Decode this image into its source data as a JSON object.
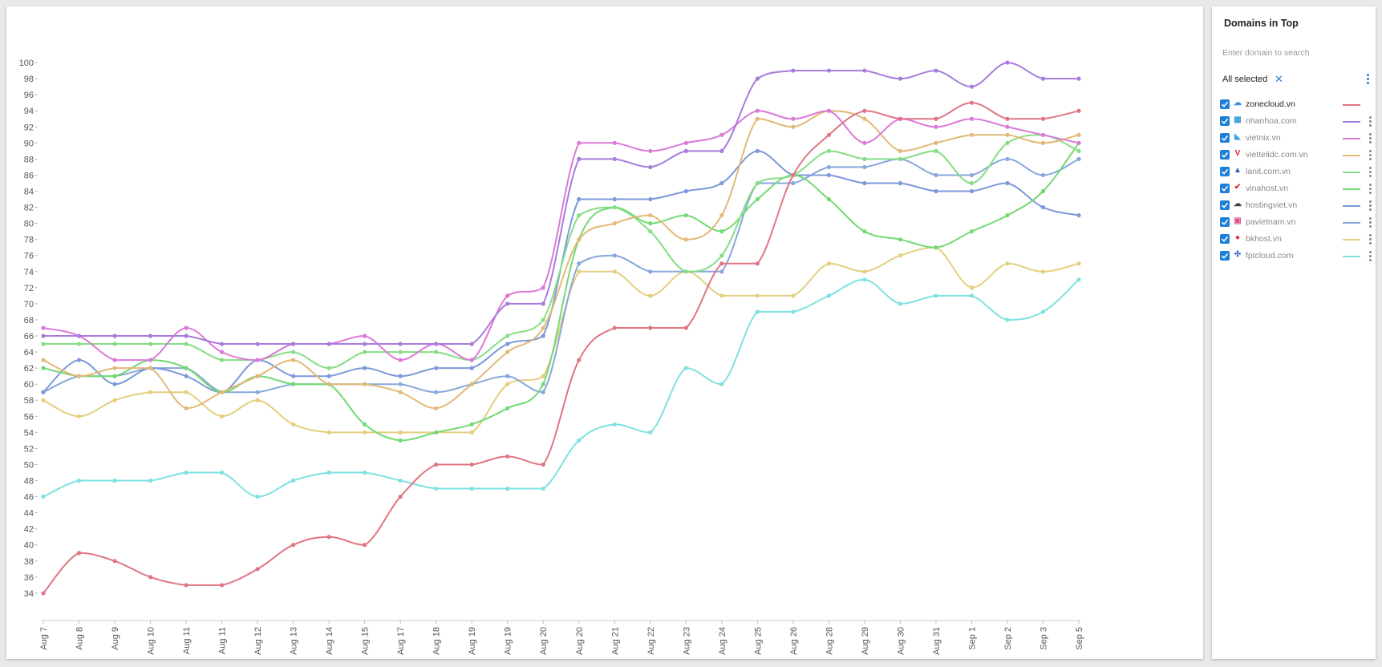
{
  "panel": {
    "title": "Domains in Top",
    "search_placeholder": "Enter domain to search",
    "selection_label": "All selected",
    "clear_icon": "close-icon",
    "menu_icon": "vertical-dots-icon"
  },
  "domains": [
    {
      "name": "zonecloud.vn",
      "icon": "cloud-icon",
      "color": "#e07583"
    },
    {
      "name": "nhanhoa.com",
      "icon": "nhanhoa-logo-icon",
      "color": "#a77cdb"
    },
    {
      "name": "vietnix.vn",
      "icon": "vietnix-logo-icon",
      "color": "#db79d8"
    },
    {
      "name": "viettelidc.com.vn",
      "icon": "viettel-logo-icon",
      "color": "#e2b977"
    },
    {
      "name": "lanit.com.vn",
      "icon": "lanit-logo-icon",
      "color": "#86dd86"
    },
    {
      "name": "vinahost.vn",
      "icon": "vinahost-logo-icon",
      "color": "#73d973"
    },
    {
      "name": "hostingviet.vn",
      "icon": "hostingviet-logo-icon",
      "color": "#7d98d9"
    },
    {
      "name": "pavietnam.vn",
      "icon": "pavietnam-logo-icon",
      "color": "#88a7dc"
    },
    {
      "name": "bkhost.vn",
      "icon": "bkhost-logo-icon",
      "color": "#e3cf7f"
    },
    {
      "name": "fptcloud.com",
      "icon": "fptcloud-logo-icon",
      "color": "#7ee1e1"
    }
  ],
  "chart_data": {
    "type": "line",
    "x": [
      "Aug 7",
      "Aug 8",
      "Aug 9",
      "Aug 10",
      "Aug 11",
      "Aug 11",
      "Aug 12",
      "Aug 13",
      "Aug 14",
      "Aug 15",
      "Aug 17",
      "Aug 18",
      "Aug 19",
      "Aug 19",
      "Aug 20",
      "Aug 20",
      "Aug 21",
      "Aug 22",
      "Aug 23",
      "Aug 24",
      "Aug 25",
      "Aug 26",
      "Aug 28",
      "Aug 29",
      "Aug 30",
      "Aug 31",
      "Sep 1",
      "Sep 2",
      "Sep 3",
      "Sep 5"
    ],
    "ylim": [
      31,
      102
    ],
    "yticks": [
      34,
      36,
      38,
      40,
      42,
      44,
      46,
      48,
      50,
      52,
      54,
      56,
      58,
      60,
      62,
      64,
      66,
      68,
      70,
      72,
      74,
      76,
      78,
      80,
      82,
      84,
      86,
      88,
      90,
      92,
      94,
      96,
      98,
      100
    ],
    "grid": false,
    "legend": "right panel",
    "series": [
      {
        "name": "zonecloud.vn",
        "color": "#e07583",
        "values": [
          34,
          39,
          38,
          36,
          35,
          35,
          37,
          40,
          41,
          40,
          46,
          50,
          50,
          51,
          50,
          63,
          67,
          67,
          67,
          75,
          75,
          86,
          91,
          94,
          93,
          93,
          95,
          93,
          93,
          94
        ]
      },
      {
        "name": "nhanhoa.com",
        "color": "#a77cdb",
        "values": [
          66,
          66,
          66,
          66,
          66,
          65,
          65,
          65,
          65,
          65,
          65,
          65,
          65,
          70,
          70,
          88,
          88,
          87,
          89,
          89,
          98,
          99,
          99,
          99,
          98,
          99,
          97,
          100,
          98,
          98
        ]
      },
      {
        "name": "vietnix.vn",
        "color": "#db79d8",
        "values": [
          67,
          66,
          63,
          63,
          67,
          64,
          63,
          65,
          65,
          66,
          63,
          65,
          63,
          71,
          72,
          90,
          90,
          89,
          90,
          91,
          94,
          93,
          94,
          90,
          93,
          92,
          93,
          92,
          91,
          90
        ]
      },
      {
        "name": "viettelidc.com.vn",
        "color": "#e2b977",
        "values": [
          63,
          61,
          62,
          62,
          57,
          59,
          61,
          63,
          60,
          60,
          59,
          57,
          60,
          64,
          67,
          78,
          80,
          81,
          78,
          81,
          93,
          92,
          94,
          93,
          89,
          90,
          91,
          91,
          90,
          91
        ]
      },
      {
        "name": "lanit.com.vn",
        "color": "#86dd86",
        "values": [
          65,
          65,
          65,
          65,
          65,
          63,
          63,
          64,
          62,
          64,
          64,
          64,
          63,
          66,
          68,
          81,
          82,
          79,
          74,
          76,
          85,
          86,
          89,
          88,
          88,
          89,
          85,
          90,
          91,
          89
        ]
      },
      {
        "name": "vinahost.vn",
        "color": "#73d973",
        "values": [
          62,
          61,
          61,
          63,
          62,
          59,
          61,
          60,
          60,
          55,
          53,
          54,
          55,
          57,
          60,
          78,
          82,
          80,
          81,
          79,
          83,
          86,
          83,
          79,
          78,
          77,
          79,
          81,
          84,
          90
        ]
      },
      {
        "name": "hostingviet.vn",
        "color": "#7d98d9",
        "values": [
          59,
          63,
          60,
          62,
          61,
          59,
          63,
          61,
          61,
          62,
          61,
          62,
          62,
          65,
          66,
          83,
          83,
          83,
          84,
          85,
          89,
          86,
          86,
          85,
          85,
          84,
          84,
          85,
          82,
          81
        ]
      },
      {
        "name": "pavietnam.vn",
        "color": "#88a7dc",
        "values": [
          59,
          61,
          61,
          62,
          62,
          59,
          59,
          60,
          60,
          60,
          60,
          59,
          60,
          61,
          59,
          75,
          76,
          74,
          74,
          74,
          85,
          85,
          87,
          87,
          88,
          86,
          86,
          88,
          86,
          88
        ]
      },
      {
        "name": "bkhost.vn",
        "color": "#e3cf7f",
        "values": [
          58,
          56,
          58,
          59,
          59,
          56,
          58,
          55,
          54,
          54,
          54,
          54,
          54,
          60,
          61,
          74,
          74,
          71,
          74,
          71,
          71,
          71,
          75,
          74,
          76,
          77,
          72,
          75,
          74,
          75
        ]
      },
      {
        "name": "fptcloud.com",
        "color": "#7ee1e1",
        "values": [
          46,
          48,
          48,
          48,
          49,
          49,
          46,
          48,
          49,
          49,
          48,
          47,
          47,
          47,
          47,
          53,
          55,
          54,
          62,
          60,
          69,
          69,
          71,
          73,
          70,
          71,
          71,
          68,
          69,
          73
        ]
      }
    ]
  }
}
